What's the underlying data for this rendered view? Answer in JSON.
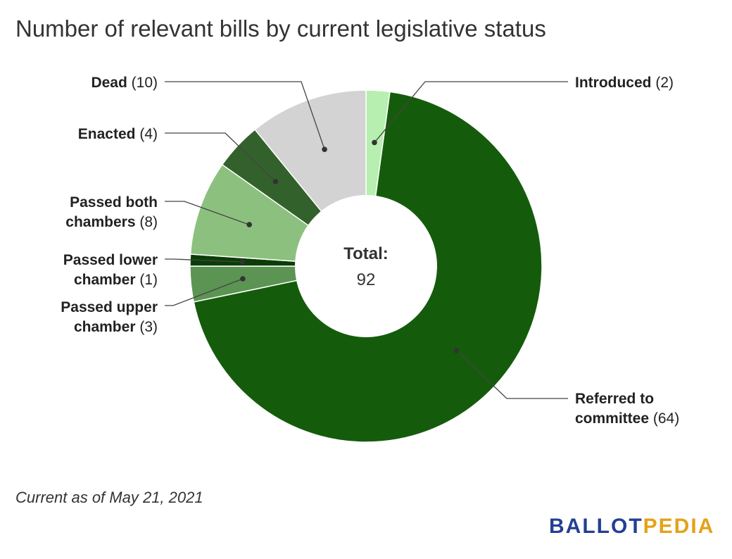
{
  "title": "Number of relevant bills by current legislative status",
  "footnote": "Current as of May 21, 2021",
  "logo": {
    "part1": "BALLOT",
    "part2": "PEDIA",
    "colors": [
      "#243f93",
      "#e3a21a"
    ]
  },
  "chart_data": {
    "type": "pie",
    "donut": true,
    "center_label": "Total:",
    "total": 92,
    "slices": [
      {
        "key": "introduced",
        "name": "Introduced",
        "value": 2,
        "color": "#b7efb0",
        "label_lines": [
          [
            {
              "t": "Introduced",
              "b": true
            },
            {
              "t": " (2)",
              "b": false
            }
          ]
        ]
      },
      {
        "key": "referred",
        "name": "Referred to committee",
        "value": 64,
        "color": "#145c0b",
        "label_lines": [
          [
            {
              "t": "Referred to",
              "b": true
            }
          ],
          [
            {
              "t": "committee",
              "b": true
            },
            {
              "t": " (64)",
              "b": false
            }
          ]
        ]
      },
      {
        "key": "passed-upper",
        "name": "Passed upper chamber",
        "value": 3,
        "color": "#5c9453",
        "label_lines": [
          [
            {
              "t": "Passed upper",
              "b": true
            }
          ],
          [
            {
              "t": "chamber",
              "b": true
            },
            {
              "t": " (3)",
              "b": false
            }
          ]
        ]
      },
      {
        "key": "passed-lower",
        "name": "Passed lower chamber",
        "value": 1,
        "color": "#0b3d07",
        "label_lines": [
          [
            {
              "t": "Passed lower",
              "b": true
            }
          ],
          [
            {
              "t": "chamber",
              "b": true
            },
            {
              "t": " (1)",
              "b": false
            }
          ]
        ]
      },
      {
        "key": "passed-both",
        "name": "Passed both chambers",
        "value": 8,
        "color": "#8cc07f",
        "label_lines": [
          [
            {
              "t": "Passed both",
              "b": true
            }
          ],
          [
            {
              "t": "chambers",
              "b": true
            },
            {
              "t": " (8)",
              "b": false
            }
          ]
        ]
      },
      {
        "key": "enacted",
        "name": "Enacted",
        "value": 4,
        "color": "#33612b",
        "label_lines": [
          [
            {
              "t": "Enacted",
              "b": true
            },
            {
              "t": " (4)",
              "b": false
            }
          ]
        ]
      },
      {
        "key": "dead",
        "name": "Dead",
        "value": 10,
        "color": "#d3d3d3",
        "label_lines": [
          [
            {
              "t": "Dead",
              "b": true
            },
            {
              "t": " (10)",
              "b": false
            }
          ]
        ]
      }
    ]
  }
}
